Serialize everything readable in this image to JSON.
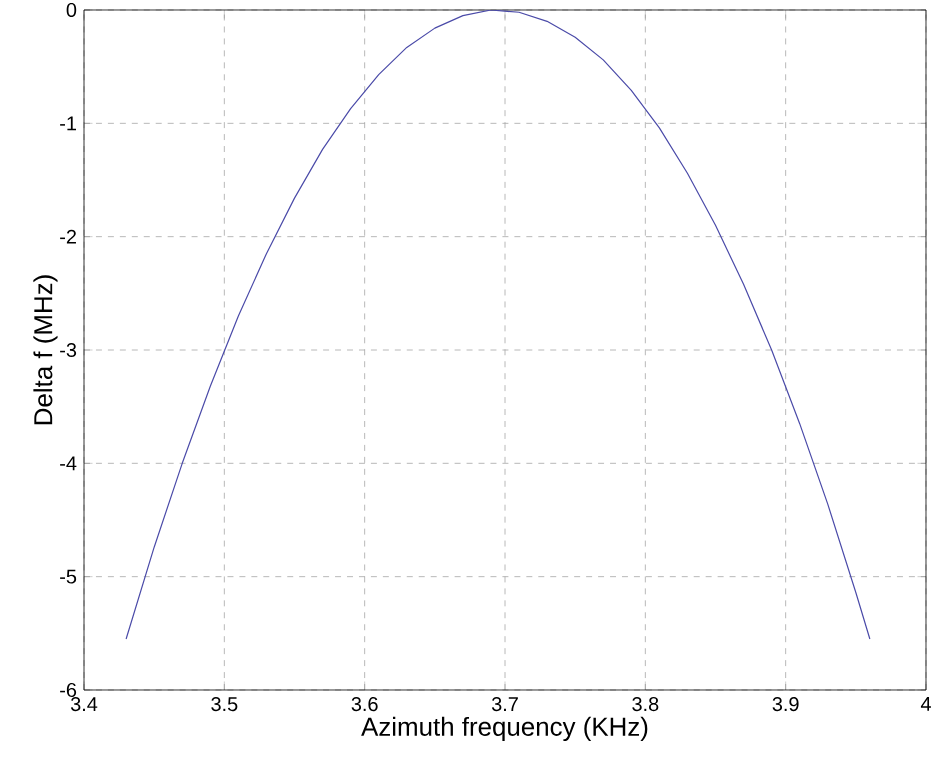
{
  "chart_data": {
    "type": "line",
    "xlabel": "Azimuth frequency (KHz)",
    "ylabel": "Delta f (MHz)",
    "xlim": [
      3.4,
      4
    ],
    "ylim": [
      -6,
      0
    ],
    "xticks": [
      3.4,
      3.5,
      3.6,
      3.7,
      3.8,
      3.9,
      4
    ],
    "yticks": [
      -6,
      -5,
      -4,
      -3,
      -2,
      -1,
      0
    ],
    "grid": true,
    "line_style": "solid",
    "series": [
      {
        "color": "#4a4aa8",
        "x": [
          3.43,
          3.45,
          3.47,
          3.49,
          3.51,
          3.53,
          3.55,
          3.57,
          3.59,
          3.61,
          3.63,
          3.65,
          3.67,
          3.69,
          3.71,
          3.73,
          3.75,
          3.77,
          3.79,
          3.81,
          3.83,
          3.85,
          3.87,
          3.89,
          3.91,
          3.93,
          3.95,
          3.96
        ],
        "values": [
          -5.55,
          -4.74,
          -4.0,
          -3.32,
          -2.7,
          -2.15,
          -1.66,
          -1.23,
          -0.87,
          -0.57,
          -0.33,
          -0.16,
          -0.05,
          0,
          -0.02,
          -0.1,
          -0.24,
          -0.44,
          -0.71,
          -1.04,
          -1.44,
          -1.9,
          -2.42,
          -3.0,
          -3.65,
          -4.36,
          -5.14,
          -5.55
        ]
      }
    ]
  }
}
